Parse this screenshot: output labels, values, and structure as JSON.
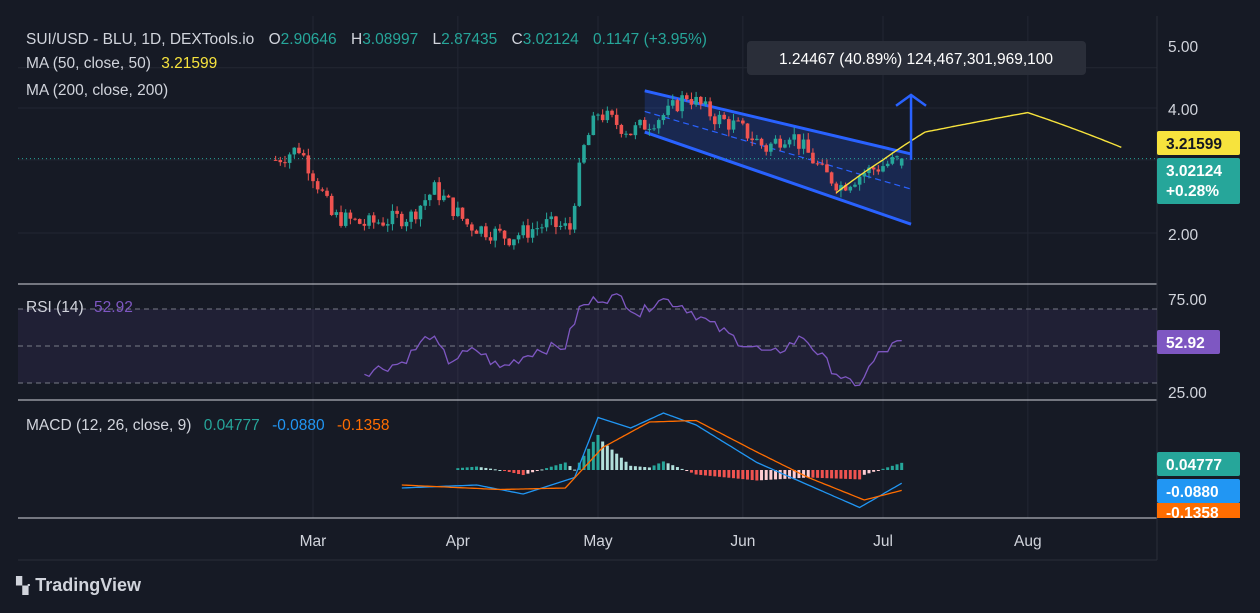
{
  "header": {
    "symbol": "SUI/USD - BLU, 1D, DEXTools.io",
    "o_label": "O",
    "o_value": "2.90646",
    "h_label": "H",
    "h_value": "3.08997",
    "l_label": "L",
    "l_value": "2.87435",
    "c_label": "C",
    "c_value": "3.02124",
    "change": "0.1147 (+3.95%)"
  },
  "indicators": {
    "ma50_label": "MA (50, close, 50)",
    "ma50_value": "3.21599",
    "ma200_label": "MA (200, close, 200)",
    "rsi_label": "RSI (14)",
    "rsi_value": "52.92",
    "macd_label": "MACD (12, 26, close, 9)",
    "macd_hist": "0.04777",
    "macd_line": "-0.0880",
    "macd_signal": "-0.1358"
  },
  "measure_tooltip": "1.24467 (40.89%) 124,467,301,969,100",
  "price_axis": {
    "ticks": [
      "5.00",
      "4.00",
      "2.00"
    ],
    "ma_tag": "3.21599",
    "last_price": "3.02124",
    "last_change": "+0.28%"
  },
  "rsi_axis": {
    "ticks": [
      "75.00",
      "25.00"
    ],
    "tag": "52.92"
  },
  "macd_axis": {
    "tags": [
      "0.04777",
      "-0.0880",
      "-0.1358"
    ]
  },
  "time_axis": {
    "labels": [
      "Mar",
      "Apr",
      "May",
      "Jun",
      "Jul",
      "Aug"
    ]
  },
  "brand": "TradingView",
  "colors": {
    "up": "#26a69a",
    "down": "#ef5350",
    "ma50": "#f7e33d",
    "rsi": "#7e57c2",
    "macd": "#2196f3",
    "signal": "#ff6d00",
    "channel": "#2962ff"
  },
  "chart_data": {
    "type": "candlestick",
    "date_range": [
      "2024-02-22",
      "2024-07-05"
    ],
    "price_range": [
      1.3,
      5.4
    ],
    "log_scale": true,
    "price_anchors": [
      {
        "date": "2024-02-22",
        "price": 3.0
      },
      {
        "date": "2024-02-27",
        "price": 3.2
      },
      {
        "date": "2024-03-05",
        "price": 2.2
      },
      {
        "date": "2024-03-12",
        "price": 2.1
      },
      {
        "date": "2024-03-22",
        "price": 2.2
      },
      {
        "date": "2024-03-27",
        "price": 2.55
      },
      {
        "date": "2024-04-03",
        "price": 2.1
      },
      {
        "date": "2024-04-12",
        "price": 1.95
      },
      {
        "date": "2024-04-20",
        "price": 2.1
      },
      {
        "date": "2024-04-25",
        "price": 2.05
      },
      {
        "date": "2024-04-28",
        "price": 3.2
      },
      {
        "date": "2024-05-01",
        "price": 3.9
      },
      {
        "date": "2024-05-08",
        "price": 3.5
      },
      {
        "date": "2024-05-16",
        "price": 3.9
      },
      {
        "date": "2024-05-20",
        "price": 4.3
      },
      {
        "date": "2024-05-26",
        "price": 3.8
      },
      {
        "date": "2024-05-31",
        "price": 3.6
      },
      {
        "date": "2024-06-06",
        "price": 3.2
      },
      {
        "date": "2024-06-11",
        "price": 3.5
      },
      {
        "date": "2024-06-18",
        "price": 2.8
      },
      {
        "date": "2024-06-22",
        "price": 2.6
      },
      {
        "date": "2024-06-27",
        "price": 2.8
      },
      {
        "date": "2024-07-05",
        "price": 3.02
      }
    ],
    "ma50": [
      {
        "date": "2024-06-21",
        "price": 2.5
      },
      {
        "date": "2024-07-01",
        "price": 3.0
      },
      {
        "date": "2024-07-10",
        "price": 3.5
      },
      {
        "date": "2024-08-01",
        "price": 3.9
      },
      {
        "date": "2024-08-21",
        "price": 3.21599
      }
    ],
    "channel": {
      "upper": [
        {
          "date": "2024-05-11",
          "price": 4.4
        },
        {
          "date": "2024-07-07",
          "price": 3.1
        }
      ],
      "lower": [
        {
          "date": "2024-05-11",
          "price": 3.5
        },
        {
          "date": "2024-07-07",
          "price": 2.1
        }
      ]
    },
    "rsi": [
      {
        "date": "2024-03-12",
        "value": 36
      },
      {
        "date": "2024-03-20",
        "value": 41
      },
      {
        "date": "2024-03-26",
        "value": 56
      },
      {
        "date": "2024-03-30",
        "value": 42
      },
      {
        "date": "2024-04-05",
        "value": 48
      },
      {
        "date": "2024-04-10",
        "value": 38
      },
      {
        "date": "2024-04-18",
        "value": 48
      },
      {
        "date": "2024-04-24",
        "value": 50
      },
      {
        "date": "2024-04-27",
        "value": 70
      },
      {
        "date": "2024-05-01",
        "value": 76
      },
      {
        "date": "2024-05-06",
        "value": 76
      },
      {
        "date": "2024-05-10",
        "value": 67
      },
      {
        "date": "2024-05-14",
        "value": 76
      },
      {
        "date": "2024-05-19",
        "value": 72
      },
      {
        "date": "2024-05-25",
        "value": 62
      },
      {
        "date": "2024-05-31",
        "value": 53
      },
      {
        "date": "2024-06-07",
        "value": 45
      },
      {
        "date": "2024-06-14",
        "value": 55
      },
      {
        "date": "2024-06-20",
        "value": 38
      },
      {
        "date": "2024-06-25",
        "value": 27
      },
      {
        "date": "2024-06-30",
        "value": 45
      },
      {
        "date": "2024-07-05",
        "value": 52.92
      }
    ],
    "rsi_levels": [
      70,
      50,
      30
    ],
    "macd": {
      "line": [
        {
          "date": "2024-03-20",
          "value": -0.12
        },
        {
          "date": "2024-04-05",
          "value": -0.1
        },
        {
          "date": "2024-04-15",
          "value": -0.16
        },
        {
          "date": "2024-04-26",
          "value": -0.05
        },
        {
          "date": "2024-05-01",
          "value": 0.35
        },
        {
          "date": "2024-05-08",
          "value": 0.28
        },
        {
          "date": "2024-05-15",
          "value": 0.38
        },
        {
          "date": "2024-05-22",
          "value": 0.3
        },
        {
          "date": "2024-06-04",
          "value": 0.05
        },
        {
          "date": "2024-06-15",
          "value": -0.1
        },
        {
          "date": "2024-06-26",
          "value": -0.25
        },
        {
          "date": "2024-07-05",
          "value": -0.088
        }
      ],
      "signal": [
        {
          "date": "2024-03-20",
          "value": -0.1
        },
        {
          "date": "2024-04-10",
          "value": -0.13
        },
        {
          "date": "2024-04-24",
          "value": -0.12
        },
        {
          "date": "2024-05-02",
          "value": 0.15
        },
        {
          "date": "2024-05-12",
          "value": 0.32
        },
        {
          "date": "2024-05-22",
          "value": 0.33
        },
        {
          "date": "2024-06-04",
          "value": 0.12
        },
        {
          "date": "2024-06-15",
          "value": -0.05
        },
        {
          "date": "2024-06-27",
          "value": -0.2
        },
        {
          "date": "2024-07-05",
          "value": -0.1358
        }
      ],
      "histogram_last": 0.04777
    },
    "xlabels": [
      "Mar",
      "Apr",
      "May",
      "Jun",
      "Jul",
      "Aug"
    ]
  }
}
